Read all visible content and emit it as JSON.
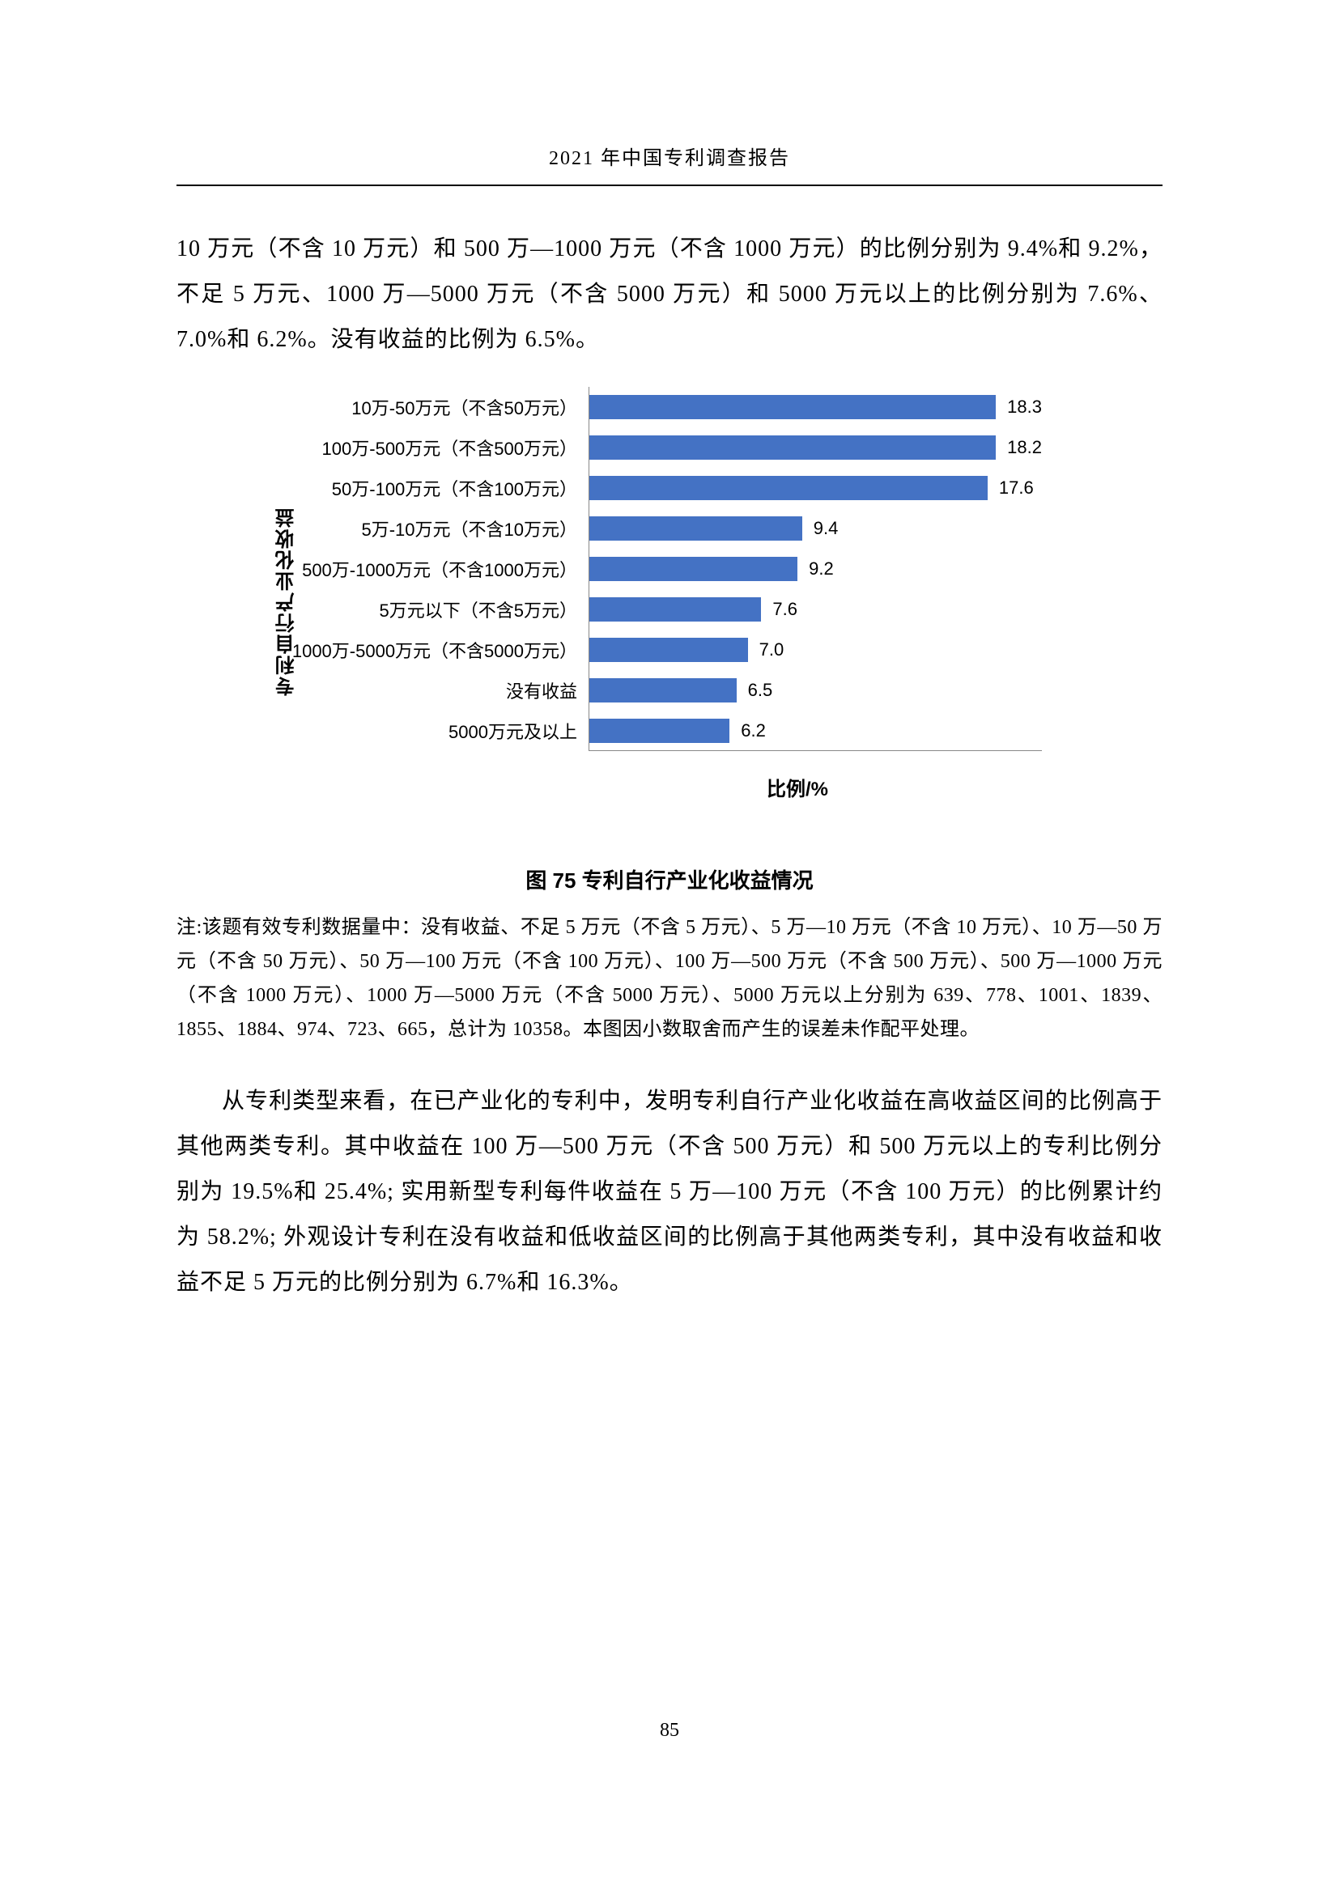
{
  "header": {
    "title": "2021 年中国专利调查报告"
  },
  "paragraph1": "10 万元（不含 10 万元）和 500 万—1000 万元（不含 1000 万元）的比例分别为 9.4%和 9.2%，不足 5 万元、1000 万—5000 万元（不含 5000 万元）和 5000 万元以上的比例分别为 7.6%、7.0%和 6.2%。没有收益的比例为 6.5%。",
  "chart": {
    "type": "bar-horizontal",
    "yaxis_title": "专利自行产业化收益",
    "xaxis_title": "比例/%",
    "bar_color": "#4472c4",
    "label_fontsize": 22,
    "title_fontsize": 24,
    "value_fontsize": 22,
    "xmax": 20,
    "background_color": "#ffffff",
    "axis_color": "#888888",
    "categories": [
      {
        "label": "10万-50万元（不含50万元）",
        "value": 18.3
      },
      {
        "label": "100万-500万元（不含500万元）",
        "value": 18.2
      },
      {
        "label": "50万-100万元（不含100万元）",
        "value": 17.6
      },
      {
        "label": "5万-10万元（不含10万元）",
        "value": 9.4
      },
      {
        "label": "500万-1000万元（不含1000万元）",
        "value": 9.2
      },
      {
        "label": "5万元以下（不含5万元）",
        "value": 7.6
      },
      {
        "label": "1000万-5000万元（不含5000万元）",
        "value": 7.0
      },
      {
        "label": "没有收益",
        "value": 6.5
      },
      {
        "label": "5000万元及以上",
        "value": 6.2
      }
    ]
  },
  "figure_caption": "图 75   专利自行产业化收益情况",
  "note": "注:该题有效专利数据量中：没有收益、不足 5 万元（不含 5 万元）、5 万—10 万元（不含 10 万元）、10 万—50 万元（不含 50 万元）、50 万—100 万元（不含 100 万元）、100 万—500 万元（不含 500 万元）、500 万—1000 万元（不含 1000 万元）、1000 万—5000 万元（不含 5000 万元）、5000 万元以上分别为 639、778、1001、1839、1855、1884、974、723、665，总计为 10358。本图因小数取舍而产生的误差未作配平处理。",
  "paragraph2": "从专利类型来看，在已产业化的专利中，发明专利自行产业化收益在高收益区间的比例高于其他两类专利。其中收益在 100 万—500 万元（不含 500 万元）和 500 万元以上的专利比例分别为 19.5%和 25.4%; 实用新型专利每件收益在 5 万—100 万元（不含 100 万元）的比例累计约为 58.2%; 外观设计专利在没有收益和低收益区间的比例高于其他两类专利，其中没有收益和收益不足 5 万元的比例分别为 6.7%和 16.3%。",
  "page_number": "85"
}
